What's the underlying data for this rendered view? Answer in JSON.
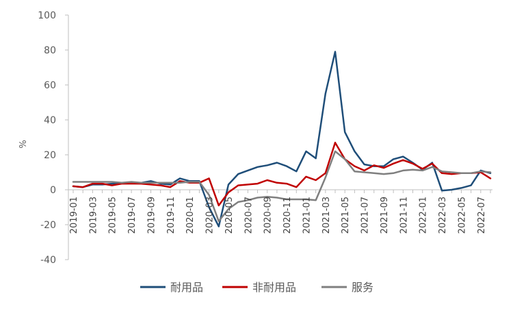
{
  "chart_data": {
    "type": "line",
    "title": "",
    "xlabel": "",
    "ylabel": "%",
    "ylim": [
      -40,
      100
    ],
    "yticks": [
      -40,
      -20,
      0,
      20,
      40,
      60,
      80,
      100
    ],
    "grid": false,
    "legend_position": "bottom",
    "x": [
      "2019-01",
      "2019-02",
      "2019-03",
      "2019-04",
      "2019-05",
      "2019-06",
      "2019-07",
      "2019-08",
      "2019-09",
      "2019-10",
      "2019-11",
      "2019-12",
      "2020-01",
      "2020-02",
      "2020-03",
      "2020-04",
      "2020-05",
      "2020-06",
      "2020-07",
      "2020-08",
      "2020-09",
      "2020-10",
      "2020-11",
      "2020-12",
      "2021-01",
      "2021-02",
      "2021-03",
      "2021-04",
      "2021-05",
      "2021-06",
      "2021-07",
      "2021-08",
      "2021-09",
      "2021-10",
      "2021-11",
      "2021-12",
      "2022-01",
      "2022-02",
      "2022-03",
      "2022-04",
      "2022-05",
      "2022-06",
      "2022-07",
      "2022-08"
    ],
    "xtick_labels": [
      "2019-01",
      "2019-03",
      "2019-05",
      "2019-07",
      "2019-09",
      "2019-11",
      "2020-01",
      "2020-03",
      "2020-05",
      "2020-07",
      "2020-09",
      "2020-11",
      "2021-01",
      "2021-03",
      "2021-05",
      "2021-07",
      "2021-09",
      "2021-11",
      "2022-01",
      "2022-03",
      "2022-05",
      "2022-07"
    ],
    "series": [
      {
        "name": "耐用品",
        "color": "#1f4e79",
        "values": [
          2,
          1.5,
          3,
          3,
          3.5,
          4,
          4,
          4,
          5,
          3.5,
          3,
          6.5,
          5,
          5,
          -10,
          -21,
          3,
          9,
          11,
          13,
          14,
          15.5,
          13.5,
          10.5,
          22,
          18,
          55,
          79,
          33,
          22,
          14.5,
          13.5,
          13.5,
          17.5,
          19,
          15.5,
          11.5,
          15.5,
          -0.5,
          0,
          1,
          2.5,
          11,
          9.5
        ]
      },
      {
        "name": "非耐用品",
        "color": "#c00000",
        "values": [
          2,
          1.5,
          3.5,
          3.5,
          2.5,
          3.5,
          3.5,
          3.5,
          3,
          2.5,
          1.5,
          5,
          4,
          4,
          6.5,
          -9,
          -1.5,
          2.5,
          3,
          3.5,
          5.5,
          4,
          3.5,
          1.5,
          7.5,
          5.5,
          9.5,
          27,
          17.5,
          13.5,
          11,
          14,
          12.5,
          15,
          17,
          15,
          12,
          15,
          9.5,
          9,
          9.5,
          9.5,
          10,
          6.5
        ]
      },
      {
        "name": "服务",
        "color": "#7f7f7f",
        "values": [
          4.5,
          4.5,
          4.5,
          4.5,
          4.5,
          4,
          4.5,
          4,
          4,
          4,
          4,
          4,
          4.5,
          4.5,
          -3,
          -18,
          -11,
          -7,
          -6,
          -4.5,
          -4,
          -4.5,
          -5.5,
          -5.5,
          -5.5,
          -6,
          7,
          22,
          17.5,
          10.5,
          10,
          9.5,
          9,
          9.5,
          11,
          11.5,
          11,
          13,
          10.5,
          10,
          9.5,
          9.5,
          10.5,
          10
        ]
      }
    ]
  }
}
